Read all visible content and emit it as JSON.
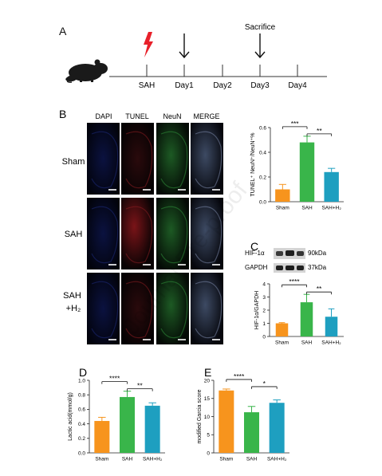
{
  "panels": {
    "A": {
      "letter": "A",
      "timeline": [
        "SAH",
        "Day1",
        "Day2",
        "Day3",
        "Day4"
      ],
      "sacrifice_label": "Sacrifice"
    },
    "B": {
      "letter": "B",
      "columns": [
        "DAPI",
        "TUNEL",
        "NeuN",
        "MERGE"
      ],
      "rows": [
        "Sham",
        "SAH",
        "SAH\n+H₂"
      ]
    },
    "C": {
      "letter": "C",
      "blot_rows": [
        {
          "name": "HIF-1α",
          "size": "90kDa"
        },
        {
          "name": "GAPDH",
          "size": "37kDa"
        }
      ]
    },
    "D": {
      "letter": "D"
    },
    "E": {
      "letter": "E"
    }
  },
  "watermark": "Journal Pre-proof",
  "colors": {
    "sham": "#F7941D",
    "sah": "#39B54A",
    "h2": "#1E9FC0"
  },
  "chart_data": [
    {
      "id": "B",
      "type": "bar",
      "categories": [
        "Sham",
        "SAH",
        "SAH+H₂"
      ],
      "values": [
        0.1,
        0.48,
        0.24
      ],
      "errors": [
        0.04,
        0.05,
        0.03
      ],
      "ylabel": "TUNEL⁺ NeuN⁺/NeuN⁺%",
      "ylim": [
        0,
        0.6
      ],
      "yticks": [
        "0.0",
        "0.2",
        "0.4",
        "0.6"
      ],
      "sig": [
        {
          "from": 0,
          "to": 1,
          "label": "***"
        },
        {
          "from": 1,
          "to": 2,
          "label": "**"
        }
      ]
    },
    {
      "id": "C",
      "type": "bar",
      "categories": [
        "Sham",
        "SAH",
        "SAH+H₂"
      ],
      "values": [
        1.0,
        2.6,
        1.5
      ],
      "errors": [
        0.05,
        0.6,
        0.6
      ],
      "ylabel": "HIF-1α/GAPDH",
      "ylim": [
        0,
        4
      ],
      "yticks": [
        "0",
        "1",
        "2",
        "3",
        "4"
      ],
      "sig": [
        {
          "from": 0,
          "to": 1,
          "label": "****"
        },
        {
          "from": 1,
          "to": 2,
          "label": "**"
        }
      ]
    },
    {
      "id": "D",
      "type": "bar",
      "categories": [
        "Sham",
        "SAH",
        "SAH+H₂"
      ],
      "values": [
        0.44,
        0.77,
        0.65
      ],
      "errors": [
        0.05,
        0.08,
        0.04
      ],
      "ylabel": "Lactic acid(mmol/g)",
      "ylim": [
        0,
        1.0
      ],
      "yticks": [
        "0.0",
        "0.2",
        "0.4",
        "0.6",
        "0.8",
        "1.0"
      ],
      "sig": [
        {
          "from": 0,
          "to": 1,
          "label": "****"
        },
        {
          "from": 1,
          "to": 2,
          "label": "**"
        }
      ]
    },
    {
      "id": "E",
      "type": "bar",
      "categories": [
        "Sham",
        "SAH",
        "SAH+H₂"
      ],
      "values": [
        17.2,
        11.2,
        13.8
      ],
      "errors": [
        0.4,
        1.6,
        0.8
      ],
      "ylabel": "modified Garcia score",
      "ylim": [
        0,
        20
      ],
      "yticks": [
        "0",
        "5",
        "10",
        "15",
        "20"
      ],
      "sig": [
        {
          "from": 0,
          "to": 1,
          "label": "****"
        },
        {
          "from": 1,
          "to": 2,
          "label": "*"
        }
      ]
    }
  ]
}
